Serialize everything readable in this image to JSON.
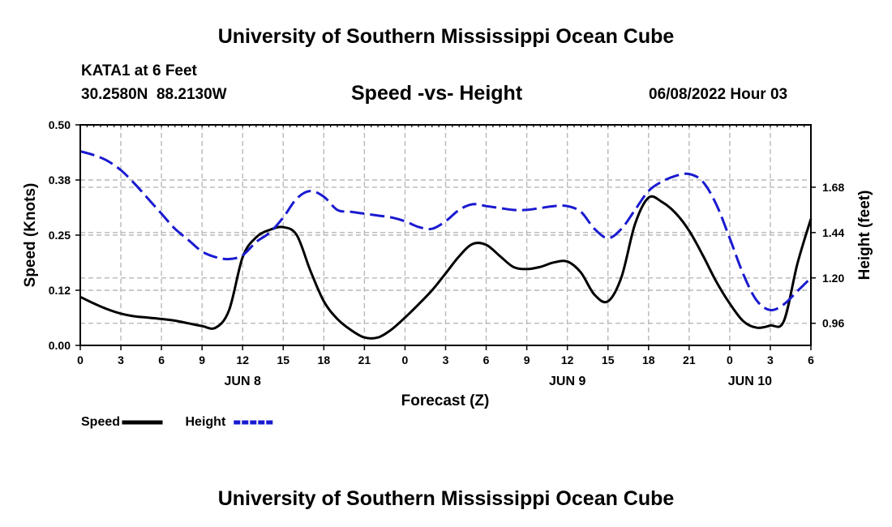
{
  "page": {
    "title": "University of Southern Mississippi Ocean Cube",
    "station": "KATA1 at 6 Feet",
    "coordinates": "30.2580N  88.2130W",
    "subtitle": "Speed -vs- Height",
    "datetime": "06/08/2022 Hour 03",
    "footer_title": "University of Southern Mississippi Ocean Cube"
  },
  "chart_data": {
    "type": "line",
    "title": "Speed -vs- Height",
    "xlabel": "Forecast (Z)",
    "ylabel": "Speed (Knots)",
    "y2label": "Height (feet)",
    "x_range": [
      0,
      54
    ],
    "ylim": [
      0,
      0.5
    ],
    "y2lim": [
      0.843,
      2.01
    ],
    "x_tick_labels": [
      "0",
      "3",
      "6",
      "9",
      "12",
      "15",
      "18",
      "21",
      "0",
      "3",
      "6",
      "9",
      "12",
      "15",
      "18",
      "21",
      "0",
      "3",
      "6"
    ],
    "y_tick_labels": [
      "0.00",
      "0.12",
      "0.25",
      "0.38",
      "0.50"
    ],
    "y_tick_values": [
      0,
      0.125,
      0.25,
      0.375,
      0.5
    ],
    "y2_tick_labels": [
      "0.96",
      "1.20",
      "1.44",
      "1.68"
    ],
    "y2_tick_values": [
      0.96,
      1.2,
      1.44,
      1.68
    ],
    "date_labels": [
      {
        "label": "JUN 8",
        "x": 12
      },
      {
        "label": "JUN 9",
        "x": 36
      },
      {
        "label": "JUN 10",
        "x": 49.5
      }
    ],
    "grid": true,
    "series": [
      {
        "name": "Speed",
        "color": "#000000",
        "dash": "solid",
        "axis": "left",
        "x": [
          0,
          1,
          2,
          3,
          4,
          5,
          6,
          7,
          8,
          9,
          10,
          11,
          12,
          13,
          14,
          15,
          16,
          17,
          18,
          19,
          20,
          21,
          22,
          23,
          24,
          25,
          26,
          27,
          28,
          29,
          30,
          31,
          32,
          33,
          34,
          35,
          36,
          37,
          38,
          39,
          40,
          41,
          42,
          43,
          44,
          45,
          46,
          47,
          48,
          49,
          50,
          51,
          52,
          53,
          54
        ],
        "values": [
          0.11,
          0.095,
          0.082,
          0.072,
          0.066,
          0.063,
          0.06,
          0.056,
          0.05,
          0.044,
          0.04,
          0.08,
          0.2,
          0.245,
          0.262,
          0.268,
          0.25,
          0.17,
          0.1,
          0.06,
          0.035,
          0.018,
          0.018,
          0.036,
          0.063,
          0.093,
          0.125,
          0.163,
          0.202,
          0.23,
          0.228,
          0.203,
          0.178,
          0.173,
          0.178,
          0.188,
          0.19,
          0.165,
          0.115,
          0.1,
          0.155,
          0.275,
          0.335,
          0.325,
          0.3,
          0.26,
          0.205,
          0.145,
          0.095,
          0.055,
          0.04,
          0.045,
          0.055,
          0.185,
          0.287
        ]
      },
      {
        "name": "Height",
        "color": "#1a1ad0",
        "dash": "dashed",
        "axis": "right",
        "x": [
          0,
          1,
          2,
          3,
          4,
          5,
          6,
          7,
          8,
          9,
          10,
          11,
          12,
          13,
          14,
          15,
          16,
          17,
          18,
          19,
          20,
          21,
          22,
          23,
          24,
          25,
          26,
          27,
          28,
          29,
          30,
          31,
          32,
          33,
          34,
          35,
          36,
          37,
          38,
          39,
          40,
          41,
          42,
          43,
          44,
          45,
          46,
          47,
          48,
          49,
          50,
          51,
          52,
          53,
          54
        ],
        "values": [
          1.87,
          1.85,
          1.82,
          1.77,
          1.7,
          1.62,
          1.54,
          1.46,
          1.4,
          1.34,
          1.31,
          1.3,
          1.32,
          1.39,
          1.44,
          1.52,
          1.62,
          1.66,
          1.63,
          1.56,
          1.55,
          1.54,
          1.53,
          1.52,
          1.5,
          1.47,
          1.46,
          1.5,
          1.56,
          1.59,
          1.58,
          1.57,
          1.56,
          1.56,
          1.57,
          1.58,
          1.58,
          1.55,
          1.46,
          1.41,
          1.46,
          1.56,
          1.66,
          1.71,
          1.74,
          1.75,
          1.71,
          1.59,
          1.41,
          1.22,
          1.08,
          1.03,
          1.06,
          1.13,
          1.2
        ]
      }
    ],
    "legend": [
      {
        "label": "Speed",
        "color": "#000000",
        "dash": "solid"
      },
      {
        "label": "Height",
        "color": "#1a1ad0",
        "dash": "dashed"
      }
    ],
    "legend_position": "bottom-left"
  }
}
